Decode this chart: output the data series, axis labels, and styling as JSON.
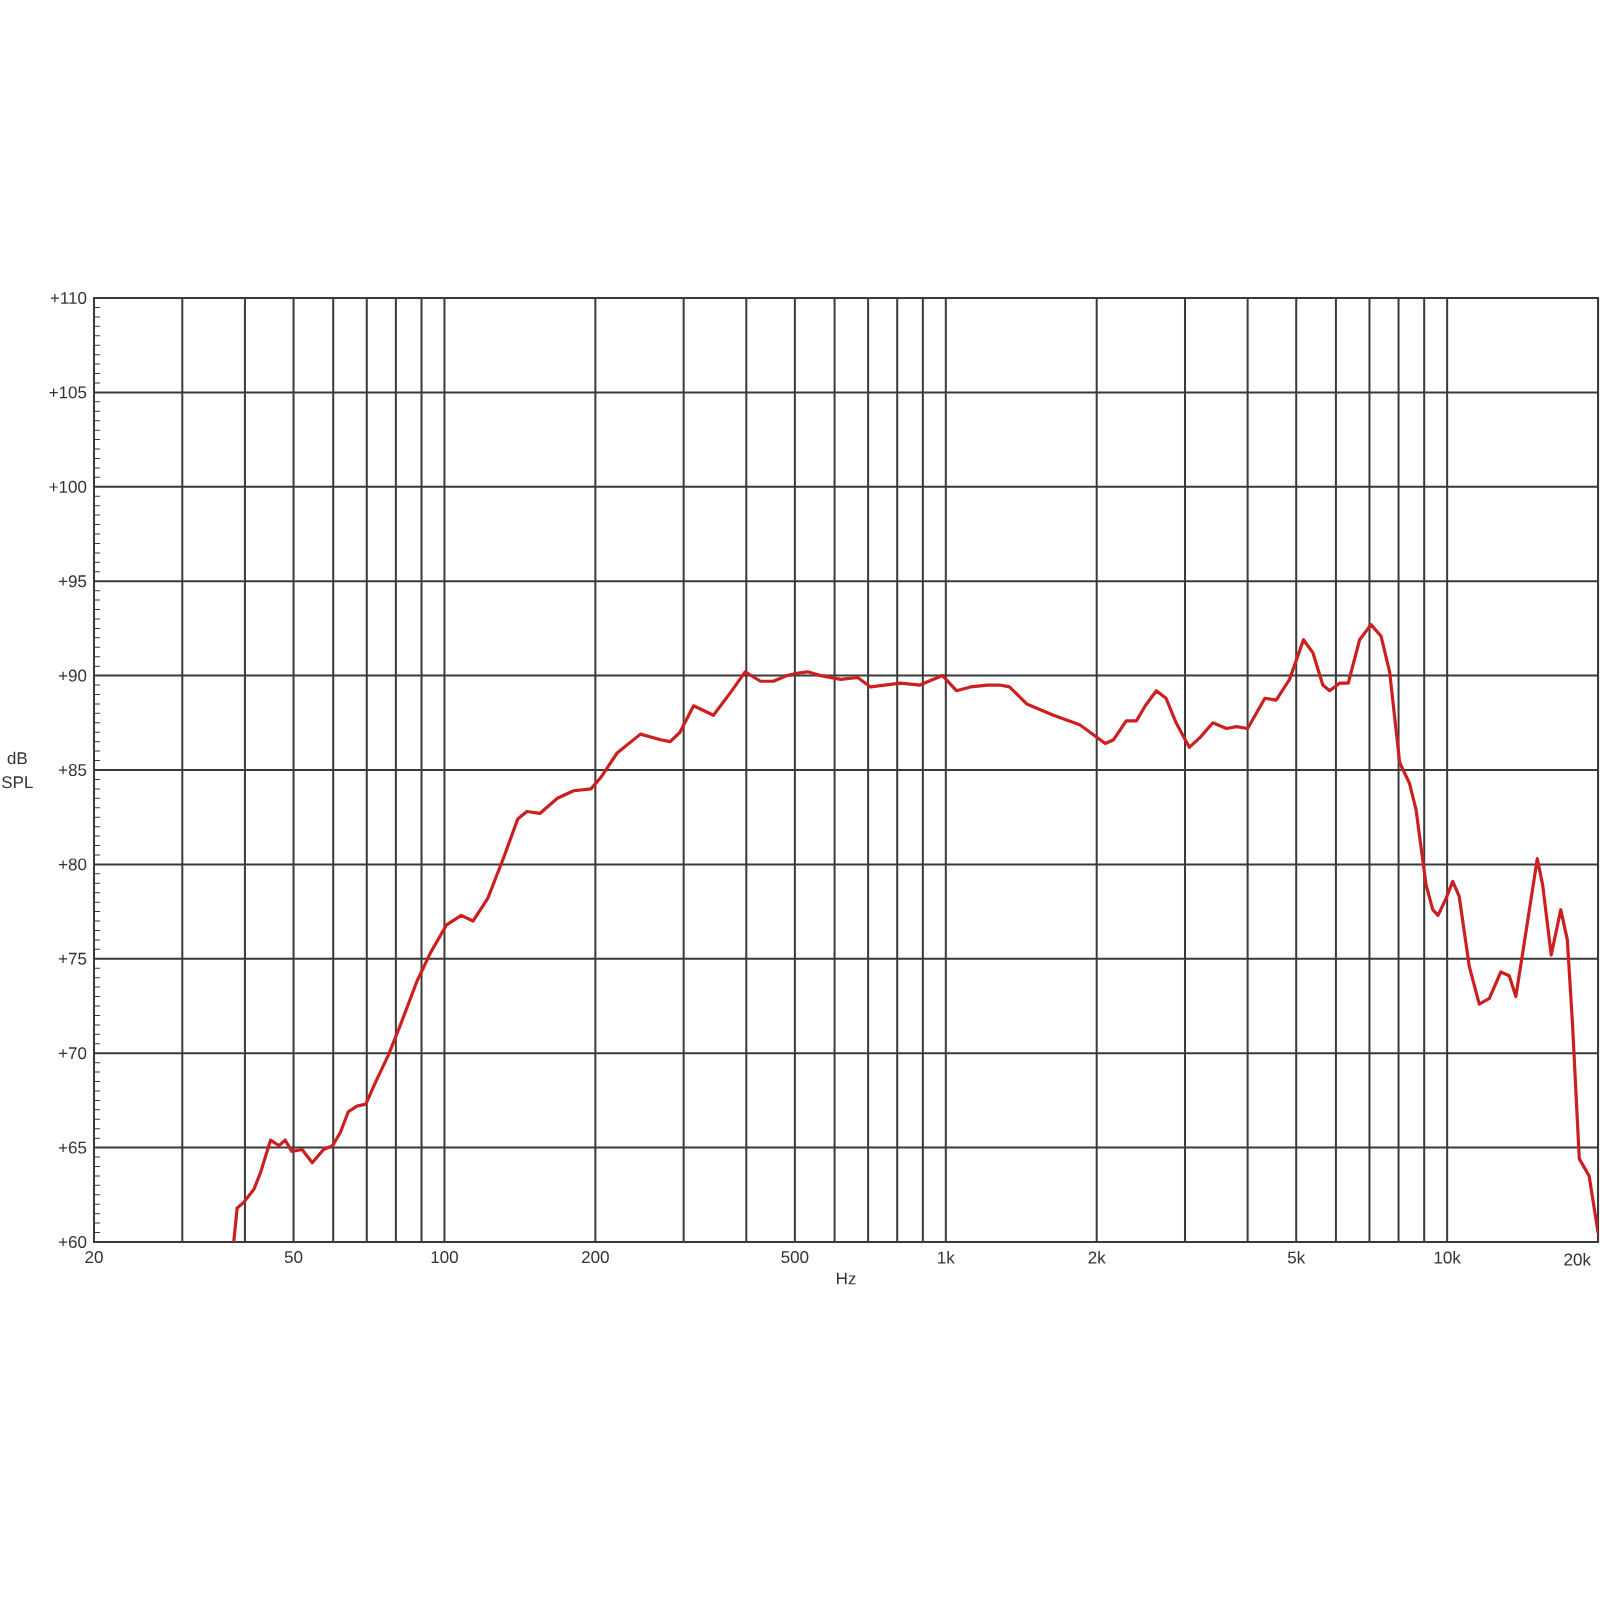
{
  "chart_data": {
    "type": "line",
    "xlabel": "Hz",
    "ylabel": "dB SPL",
    "log": "x",
    "grid": true,
    "color": "#cc1f1f",
    "xlim": [
      20,
      20000
    ],
    "ylim": [
      60,
      110
    ],
    "xticks": [
      20,
      {
        "value": 30,
        "label": null
      },
      {
        "value": 40,
        "label": null
      },
      50,
      {
        "value": 60,
        "label": null
      },
      {
        "value": 70,
        "label": null
      },
      {
        "value": 80,
        "label": null
      },
      {
        "value": 90,
        "label": null
      },
      100,
      200,
      {
        "value": 300,
        "label": null
      },
      {
        "value": 400,
        "label": null
      },
      500,
      {
        "value": 600,
        "label": null
      },
      {
        "value": 700,
        "label": null
      },
      {
        "value": 800,
        "label": null
      },
      {
        "value": 900,
        "label": null
      },
      {
        "value": 1000,
        "label": "1k"
      },
      {
        "value": 2000,
        "label": "2k"
      },
      {
        "value": 3000,
        "label": null
      },
      {
        "value": 4000,
        "label": null
      },
      {
        "value": 5000,
        "label": "5k"
      },
      {
        "value": 6000,
        "label": null
      },
      {
        "value": 7000,
        "label": null
      },
      {
        "value": 8000,
        "label": null
      },
      {
        "value": 9000,
        "label": null
      },
      {
        "value": 10000,
        "label": "10k"
      },
      {
        "value": 20000,
        "label": "20k"
      }
    ],
    "yticks": [
      {
        "value": 60,
        "label": "+60"
      },
      {
        "value": 65,
        "label": "+65"
      },
      {
        "value": 70,
        "label": "+70"
      },
      {
        "value": 75,
        "label": "+75"
      },
      {
        "value": 80,
        "label": "+80"
      },
      {
        "value": 85,
        "label": "+85"
      },
      {
        "value": 90,
        "label": "+90"
      },
      {
        "value": 95,
        "label": "+95"
      },
      {
        "value": 100,
        "label": "+100"
      },
      {
        "value": 105,
        "label": "+105"
      },
      {
        "value": 110,
        "label": "+110"
      }
    ],
    "x": [
      38,
      38.6,
      39.8,
      41.7,
      43,
      45,
      46.8,
      48.1,
      49.6,
      52,
      54.5,
      57.4,
      59.8,
      62,
      64.3,
      66.9,
      69.7,
      72.7,
      77.3,
      81.7,
      88.1,
      93.7,
      101,
      108,
      114,
      122,
      131,
      140,
      146,
      155,
      168,
      181,
      196,
      205,
      221,
      246,
      270,
      282,
      295,
      314,
      344,
      372,
      398,
      427,
      453,
      482,
      500,
      530,
      563,
      617,
      667,
      708,
      812,
      888,
      985,
      1050,
      1120,
      1210,
      1280,
      1340,
      1450,
      1640,
      1850,
      1940,
      2080,
      2160,
      2290,
      2400,
      2500,
      2630,
      2750,
      2880,
      3060,
      3210,
      3410,
      3630,
      3800,
      4000,
      4330,
      4560,
      4850,
      5170,
      5400,
      5650,
      5830,
      6100,
      6350,
      6690,
      7050,
      7380,
      7680,
      8040,
      8410,
      8670,
      9080,
      9360,
      9590,
      9950,
      10260,
      10570,
      11070,
      11590,
      12140,
      12790,
      13300,
      13710,
      14360,
      15130,
      15510,
      16130,
      16850,
      17370,
      17790,
      18350,
      19200,
      20000
    ],
    "values": [
      60,
      61.8,
      62.1,
      62.8,
      63.7,
      65.4,
      65.1,
      65.4,
      64.8,
      64.9,
      64.2,
      64.9,
      65.1,
      65.8,
      66.9,
      67.2,
      67.3,
      68.4,
      69.9,
      71.5,
      73.8,
      75.3,
      76.8,
      77.3,
      77.0,
      78.2,
      80.3,
      82.4,
      82.8,
      82.7,
      83.5,
      83.9,
      84.0,
      84.6,
      85.9,
      86.9,
      86.6,
      86.5,
      87.0,
      88.4,
      87.9,
      89.1,
      90.2,
      89.7,
      89.7,
      90.0,
      90.1,
      90.2,
      90.0,
      89.8,
      89.9,
      89.4,
      89.6,
      89.5,
      90.0,
      89.2,
      89.4,
      89.5,
      89.5,
      89.4,
      88.5,
      87.9,
      87.4,
      87.0,
      86.4,
      86.6,
      87.6,
      87.6,
      88.4,
      89.2,
      88.8,
      87.5,
      86.2,
      86.7,
      87.5,
      87.2,
      87.3,
      87.2,
      88.8,
      88.7,
      89.8,
      91.9,
      91.2,
      89.5,
      89.2,
      89.6,
      89.6,
      91.9,
      92.7,
      92.1,
      90.2,
      85.4,
      84.3,
      82.9,
      78.9,
      77.6,
      77.3,
      78.2,
      79.1,
      78.3,
      74.6,
      72.6,
      72.9,
      74.3,
      74.1,
      73.0,
      76.4,
      80.3,
      78.9,
      75.2,
      77.6,
      76.0,
      71.5,
      64.4,
      63.5,
      60.5
    ]
  }
}
